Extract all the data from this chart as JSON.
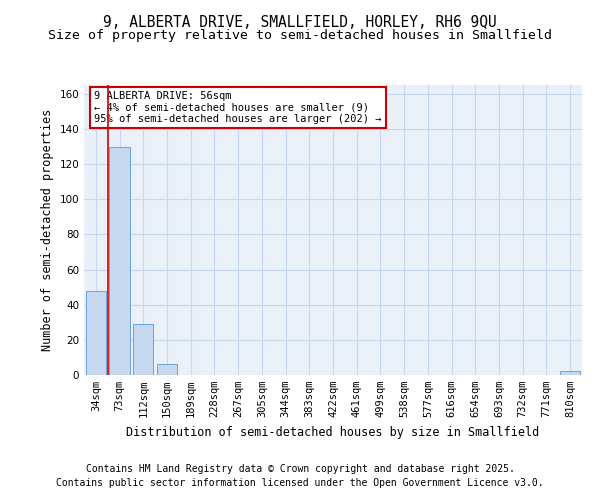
{
  "title_line1": "9, ALBERTA DRIVE, SMALLFIELD, HORLEY, RH6 9QU",
  "title_line2": "Size of property relative to semi-detached houses in Smallfield",
  "xlabel": "Distribution of semi-detached houses by size in Smallfield",
  "ylabel": "Number of semi-detached properties",
  "categories": [
    "34sqm",
    "73sqm",
    "112sqm",
    "150sqm",
    "189sqm",
    "228sqm",
    "267sqm",
    "305sqm",
    "344sqm",
    "383sqm",
    "422sqm",
    "461sqm",
    "499sqm",
    "538sqm",
    "577sqm",
    "616sqm",
    "654sqm",
    "693sqm",
    "732sqm",
    "771sqm",
    "810sqm"
  ],
  "values": [
    48,
    130,
    29,
    6,
    0,
    0,
    0,
    0,
    0,
    0,
    0,
    0,
    0,
    0,
    0,
    0,
    0,
    0,
    0,
    0,
    2
  ],
  "bar_color": "#c5d8f0",
  "bar_edge_color": "#5b9bd5",
  "annotation_text": "9 ALBERTA DRIVE: 56sqm\n← 4% of semi-detached houses are smaller (9)\n95% of semi-detached houses are larger (202) →",
  "annotation_box_facecolor": "#ffffff",
  "annotation_box_edgecolor": "#cc0000",
  "property_line_color": "#cc0000",
  "property_line_x": 0.35,
  "ylim": [
    0,
    165
  ],
  "yticks": [
    0,
    20,
    40,
    60,
    80,
    100,
    120,
    140,
    160
  ],
  "footnote1": "Contains HM Land Registry data © Crown copyright and database right 2025.",
  "footnote2": "Contains public sector information licensed under the Open Government Licence v3.0.",
  "background_color": "#ffffff",
  "grid_color": "#c5d8f0",
  "title_fontsize": 10.5,
  "subtitle_fontsize": 9.5,
  "axis_label_fontsize": 8.5,
  "tick_fontsize": 7.5,
  "annotation_fontsize": 7.5,
  "footnote_fontsize": 7
}
